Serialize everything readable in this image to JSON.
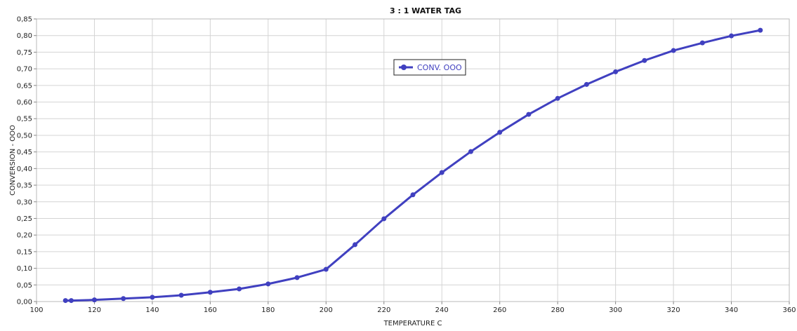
{
  "chart_data": {
    "type": "line",
    "title": "3 : 1 WATER TAG",
    "xlabel": "TEMPERATURE C",
    "ylabel": "CONVERSION - OOO",
    "xlim": [
      100,
      360
    ],
    "ylim": [
      0,
      0.85
    ],
    "x_ticks": [
      "100",
      "120",
      "140",
      "160",
      "180",
      "200",
      "220",
      "240",
      "260",
      "280",
      "300",
      "320",
      "340",
      "360"
    ],
    "y_ticks": [
      "0,00",
      "0,05",
      "0,10",
      "0,15",
      "0,20",
      "0,25",
      "0,30",
      "0,35",
      "0,40",
      "0,45",
      "0,50",
      "0,55",
      "0,60",
      "0,65",
      "0,70",
      "0,75",
      "0,80",
      "0,85"
    ],
    "grid": true,
    "legend_position": "top-center",
    "series": [
      {
        "name": "CONV. OOO",
        "color": "#4040c0",
        "x": [
          110,
          112,
          120,
          130,
          140,
          150,
          160,
          170,
          180,
          190,
          200,
          210,
          220,
          230,
          240,
          250,
          260,
          270,
          280,
          290,
          300,
          310,
          320,
          330,
          340,
          350
        ],
        "y": [
          0.003,
          0.003,
          0.005,
          0.009,
          0.013,
          0.019,
          0.028,
          0.038,
          0.053,
          0.072,
          0.097,
          0.171,
          0.249,
          0.321,
          0.388,
          0.451,
          0.509,
          0.563,
          0.611,
          0.653,
          0.691,
          0.725,
          0.755,
          0.778,
          0.799,
          0.816
        ]
      }
    ]
  }
}
